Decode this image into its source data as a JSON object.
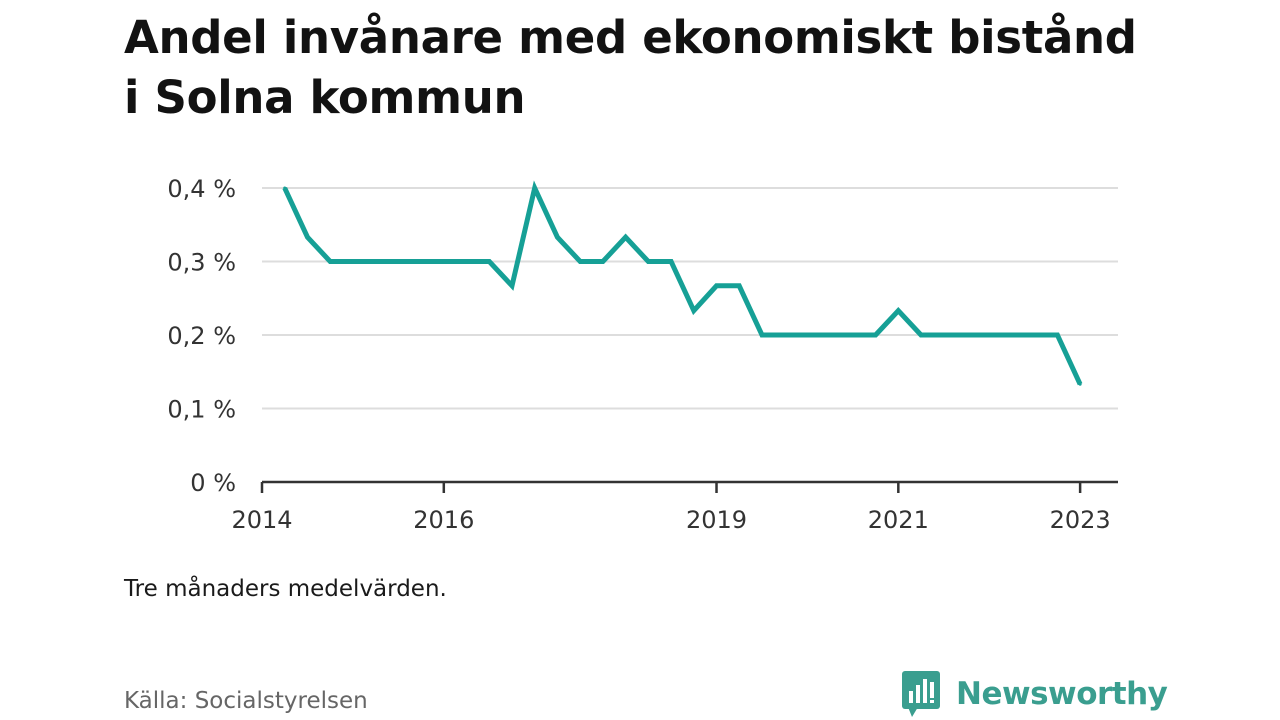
{
  "title": "Andel invånare med ekonomiskt bistånd i Solna kommun",
  "note": "Tre månaders medelvärden.",
  "source": "Källa: Socialstyrelsen",
  "brand": {
    "name": "Newsworthy",
    "icon": "newsworthy-logo-icon",
    "color": "#3a9e8f"
  },
  "chart_data": {
    "type": "line",
    "title": "Andel invånare med ekonomiskt bistånd i Solna kommun",
    "xlabel": "",
    "ylabel": "",
    "x_ticks": [
      "2014",
      "2016",
      "2019",
      "2021",
      "2023"
    ],
    "y_ticks": [
      "0 %",
      "0,1 %",
      "0,2 %",
      "0,3 %",
      "0,4 %"
    ],
    "ylim": [
      0,
      0.4
    ],
    "xlim": [
      "2014-01",
      "2023-06"
    ],
    "grid": true,
    "line_color": "#16a096",
    "series": [
      {
        "x": [
          "2014-04",
          "2014-07",
          "2014-10",
          "2015-01",
          "2015-04",
          "2015-07",
          "2015-10",
          "2016-01",
          "2016-04",
          "2016-07",
          "2016-10",
          "2017-01",
          "2017-04",
          "2017-07",
          "2017-10",
          "2018-01",
          "2018-04",
          "2018-07",
          "2018-10",
          "2019-01",
          "2019-04",
          "2019-07",
          "2019-10",
          "2020-01",
          "2020-04",
          "2020-07",
          "2020-10",
          "2021-01",
          "2021-04",
          "2021-07",
          "2021-10",
          "2022-01",
          "2022-04",
          "2022-07",
          "2022-10",
          "2023-01"
        ],
        "values": [
          0.4,
          0.333,
          0.3,
          0.3,
          0.3,
          0.3,
          0.3,
          0.3,
          0.3,
          0.3,
          0.267,
          0.4,
          0.333,
          0.3,
          0.3,
          0.333,
          0.3,
          0.3,
          0.233,
          0.267,
          0.267,
          0.2,
          0.2,
          0.2,
          0.2,
          0.2,
          0.2,
          0.233,
          0.2,
          0.2,
          0.2,
          0.2,
          0.2,
          0.2,
          0.2,
          0.133
        ]
      }
    ]
  }
}
